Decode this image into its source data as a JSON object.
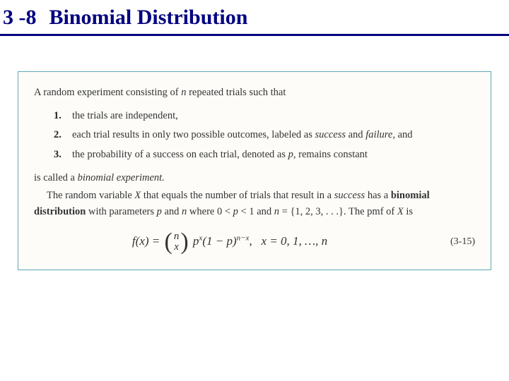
{
  "header": {
    "section_number": "3 -8",
    "section_title": "Binomial Distribution"
  },
  "box": {
    "intro": "A random experiment consisting of n repeated trials such that",
    "items": [
      {
        "num": "1.",
        "text_before": "the trials are independent,",
        "italic_terms": []
      },
      {
        "num": "2.",
        "text": "each trial results in only two possible outcomes, labeled as success and failure, and"
      },
      {
        "num": "3.",
        "text": "the probability of a success on each trial, denoted as p, remains constant"
      }
    ],
    "called": "is called a binomial experiment.",
    "para2_a": "The random variable X that equals the number of trials that result in a success has a ",
    "para2_bold": "binomial distribution",
    "para2_b": " with parameters p and n where 0 < p < 1 and n = {1, 2, 3, . . .}. The pmf of X is",
    "formula_text": "f(x) = C(n,x) p^x (1-p)^(n-x),  x = 0, 1, …, n",
    "eq_num": "(3-15)"
  },
  "styling": {
    "header_color": "#000080",
    "header_border_color": "#000080",
    "box_border_color": "#5ba8b8",
    "box_background": "#fdfcf8",
    "body_background": "#ffffff",
    "header_fontsize": 30,
    "body_fontsize": 14.5,
    "formula_fontsize": 17
  }
}
